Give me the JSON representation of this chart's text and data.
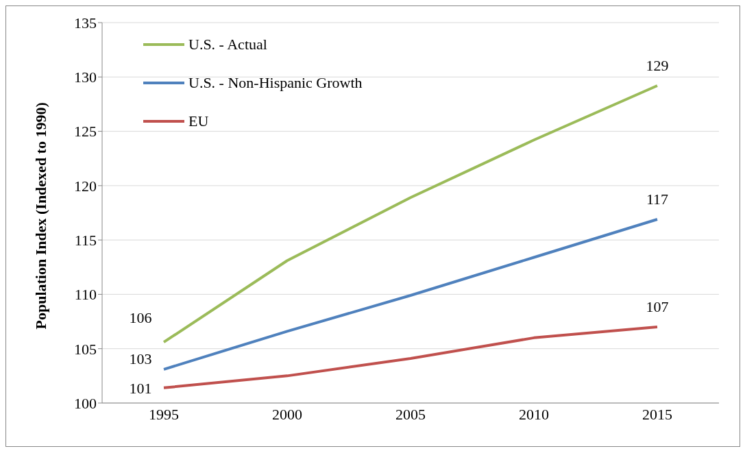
{
  "chart_data": {
    "type": "line",
    "ylabel": "Population Index (Indexed to 1990)",
    "categories": [
      "1995",
      "2000",
      "2005",
      "2010",
      "2015"
    ],
    "series": [
      {
        "name": "U.S. - Actual",
        "color": "#9bbb59",
        "values": [
          105.6,
          113.1,
          118.9,
          124.2,
          129.2
        ],
        "value_labels": [
          "106",
          null,
          null,
          null,
          "129"
        ]
      },
      {
        "name": "U.S. - Non-Hispanic Growth",
        "color": "#4f81bd",
        "values": [
          103.1,
          106.6,
          109.9,
          113.4,
          116.9
        ],
        "value_labels": [
          "103",
          null,
          null,
          null,
          "117"
        ]
      },
      {
        "name": "EU",
        "color": "#c0504d",
        "values": [
          101.4,
          102.5,
          104.1,
          106.0,
          107.0
        ],
        "value_labels": [
          "101",
          null,
          null,
          null,
          "107"
        ]
      }
    ],
    "ylim": [
      100,
      135
    ],
    "yticks": [
      100,
      105,
      110,
      115,
      120,
      125,
      130,
      135
    ],
    "grid": "y",
    "legend": "top left",
    "marker": "none",
    "line_style": "solid"
  }
}
